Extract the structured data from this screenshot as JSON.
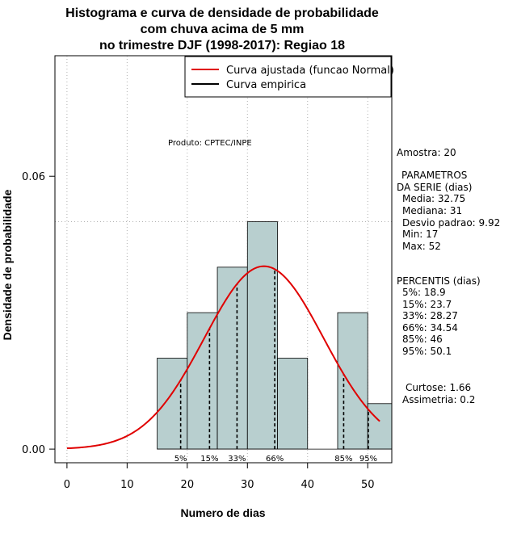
{
  "chart_data": {
    "type": "histogram",
    "title_lines": [
      "Histograma e curva de densidade de probabilidade",
      "com chuva acima de 5 mm",
      "no trimestre DJF (1998-2017): Regiao 18"
    ],
    "xlabel": "Numero de dias",
    "ylabel": "Densidade de probabilidade",
    "xlim": [
      -2,
      54
    ],
    "ylim": [
      -0.003,
      0.0865
    ],
    "x_ticks": [
      0,
      10,
      20,
      30,
      40,
      50
    ],
    "x_tick_labels": [
      "0",
      "10",
      "20",
      "30",
      "40",
      "50"
    ],
    "y_ticks": [
      0.0,
      0.06
    ],
    "y_tick_labels": [
      "0.00",
      "0.06"
    ],
    "grid_x": [
      0,
      10,
      20,
      30,
      40,
      50
    ],
    "hline": 0.05,
    "bins": [
      {
        "x0": 15,
        "x1": 20,
        "density": 0.02
      },
      {
        "x0": 20,
        "x1": 25,
        "density": 0.03
      },
      {
        "x0": 25,
        "x1": 30,
        "density": 0.04
      },
      {
        "x0": 30,
        "x1": 35,
        "density": 0.05
      },
      {
        "x0": 35,
        "x1": 40,
        "density": 0.02
      },
      {
        "x0": 40,
        "x1": 45,
        "density": 0.0
      },
      {
        "x0": 45,
        "x1": 50,
        "density": 0.03
      },
      {
        "x0": 50,
        "x1": 55,
        "density": 0.01
      }
    ],
    "normal_fit": {
      "mean": 32.75,
      "sd": 9.92,
      "x_from": 0,
      "x_to": 52
    },
    "percentiles": [
      {
        "label": "5%",
        "value": 18.9
      },
      {
        "label": "15%",
        "value": 23.7
      },
      {
        "label": "33%",
        "value": 28.27
      },
      {
        "label": "66%",
        "value": 34.54
      },
      {
        "label": "85%",
        "value": 46
      },
      {
        "label": "95%",
        "value": 50.1
      }
    ],
    "legend": [
      {
        "label": "Curva ajustada (funcao Normal)",
        "color": "#e00000"
      },
      {
        "label": "Curva empirica",
        "color": "#000000"
      }
    ],
    "legend_position": "top-right",
    "product_label": "Produto: CPTEC/INPE",
    "colors": {
      "bar_fill": "#b8cfcf",
      "bar_stroke": "#000000",
      "curve": "#e00000",
      "grid": "#b0b0b0"
    }
  },
  "stats": {
    "amostra": "Amostra: 20",
    "param_title_1": "PARAMETROS",
    "param_title_2": "DA SERIE (dias)",
    "media": "Media: 32.75",
    "mediana": "Mediana: 31",
    "desvio": "Desvio padrao: 9.92",
    "min": "Min: 17",
    "max": "Max: 52",
    "percentis_title": "PERCENTIS (dias)",
    "p5": "5%: 18.9",
    "p15": "15%: 23.7",
    "p33": "33%: 28.27",
    "p66": "66%: 34.54",
    "p85": "85%: 46",
    "p95": "95%: 50.1",
    "curtose": "Curtose: 1.66",
    "assimetria": "Assimetria: 0.2"
  }
}
